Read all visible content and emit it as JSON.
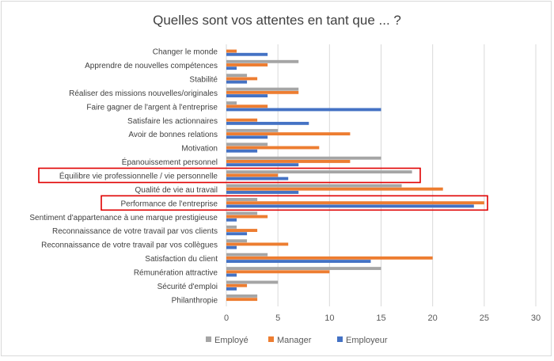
{
  "chart_data": {
    "type": "bar",
    "orientation": "horizontal",
    "title": "Quelles sont vos attentes en tant que ... ?",
    "xlabel": "",
    "ylabel": "",
    "xlim": [
      0,
      30
    ],
    "x_ticks": [
      "0",
      "5",
      "10",
      "15",
      "20",
      "25",
      "30"
    ],
    "grid": "vertical",
    "legend_position": "bottom",
    "highlighted_categories": [
      "Équilibre vie professionnelle / vie personnelle",
      "Performance de l'entreprise"
    ],
    "highlight_color": "#e00000",
    "categories": [
      "Changer le monde",
      "Apprendre de nouvelles compétences",
      "Stabilité",
      "Réaliser des missions nouvelles/originales",
      "Faire gagner de l'argent à l'entreprise",
      "Satisfaire les actionnaires",
      "Avoir de bonnes relations",
      "Motivation",
      "Épanouissement personnel",
      "Équilibre vie professionnelle / vie personnelle",
      "Qualité de vie au travail",
      "Performance de l'entreprise",
      "Sentiment d'appartenance à une marque prestigieuse",
      "Reconnaissance de votre travail par vos clients",
      "Reconnaissance de votre travail par vos collègues",
      "Satisfaction du client",
      "Rémunération attractive",
      "Sécurité d'emploi",
      "Philanthropie"
    ],
    "series": [
      {
        "name": "Employé",
        "color": "#a5a5a5",
        "values": [
          0,
          7,
          2,
          7,
          1,
          0,
          5,
          4,
          15,
          18,
          17,
          3,
          3,
          1,
          2,
          4,
          15,
          5,
          3
        ]
      },
      {
        "name": "Manager",
        "color": "#ed7d31",
        "values": [
          1,
          4,
          3,
          7,
          4,
          3,
          12,
          9,
          12,
          5,
          21,
          25,
          4,
          3,
          6,
          20,
          10,
          2,
          3
        ]
      },
      {
        "name": "Employeur",
        "color": "#4472c4",
        "values": [
          4,
          1,
          2,
          4,
          15,
          8,
          4,
          3,
          7,
          6,
          7,
          24,
          1,
          2,
          1,
          14,
          1,
          1,
          0
        ]
      }
    ]
  }
}
